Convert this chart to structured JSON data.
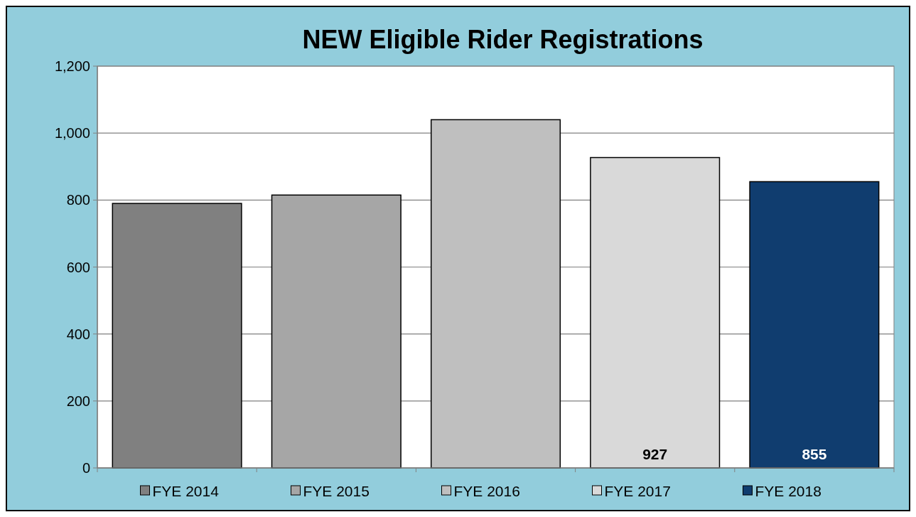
{
  "chart_data": {
    "type": "bar",
    "title": "NEW Eligible Rider Registrations",
    "categories": [
      null,
      null,
      null,
      null,
      null
    ],
    "stacked": true,
    "series": [
      {
        "name": "FYE 2014",
        "color": "#808080",
        "values": [
          790,
          null,
          null,
          null,
          null
        ]
      },
      {
        "name": "FYE 2015",
        "color": "#a6a6a6",
        "values": [
          null,
          815,
          null,
          null,
          null
        ]
      },
      {
        "name": "FYE 2016",
        "color": "#bfbfbf",
        "values": [
          null,
          null,
          1040,
          null,
          null
        ]
      },
      {
        "name": "FYE 2017",
        "color": "#d9d9d9",
        "values": [
          null,
          null,
          null,
          927,
          null
        ],
        "value_labels": [
          null,
          null,
          null,
          "927",
          null
        ]
      },
      {
        "name": "FYE 2018",
        "color": "#103d6f",
        "values": [
          null,
          null,
          null,
          null,
          855
        ],
        "value_labels": [
          null,
          null,
          null,
          null,
          "855"
        ]
      }
    ],
    "ylim": [
      0,
      1200
    ],
    "yticks": [
      0,
      200,
      400,
      600,
      800,
      {
        "value": 1000,
        "label": "1,000"
      },
      {
        "value": 1200,
        "label": "1,200"
      }
    ],
    "grid": "y",
    "legend": "bottom"
  }
}
